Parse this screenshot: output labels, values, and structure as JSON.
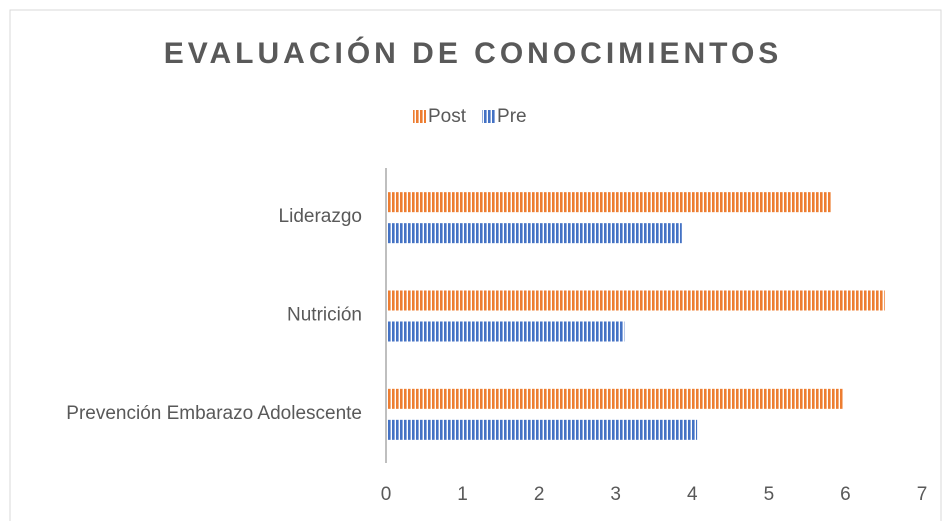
{
  "chart_data": {
    "type": "barh",
    "title": "EVALUACIÓN DE CONOCIMIENTOS",
    "categories": [
      "Liderazgo",
      "Nutrición",
      "Prevención Embarazo Adolescente"
    ],
    "series": [
      {
        "name": "Post",
        "color": "#ed7d31",
        "values": [
          5.8,
          6.5,
          5.95
        ]
      },
      {
        "name": "Pre",
        "color": "#4472c4",
        "values": [
          3.85,
          3.1,
          4.05
        ]
      }
    ],
    "xlim": [
      0,
      7
    ],
    "xticks": [
      0,
      1,
      2,
      3,
      4,
      5,
      6,
      7
    ],
    "grid": false,
    "legend": "top"
  }
}
